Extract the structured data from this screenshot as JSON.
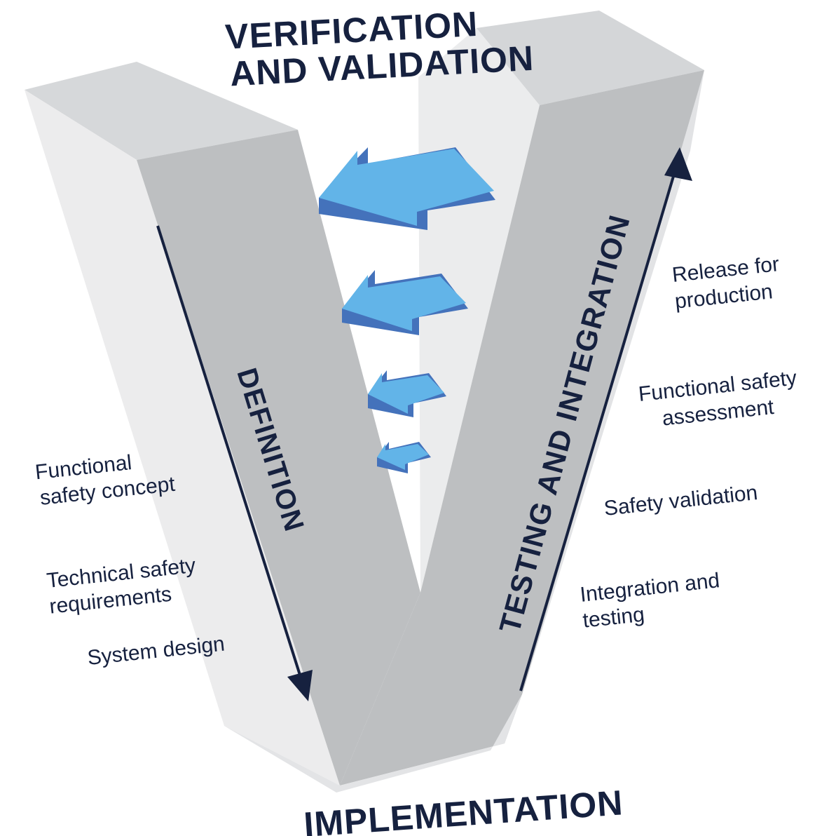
{
  "headings": {
    "top_line1": "VERIFICATION",
    "top_line2": "AND VALIDATION",
    "bottom": "IMPLEMENTATION",
    "left_axis": "DEFINITION",
    "right_axis": "TESTING AND INTEGRATION"
  },
  "left_items": [
    {
      "line1": "Functional",
      "line2": "safety concept"
    },
    {
      "line1": "Technical safety",
      "line2": "requirements"
    },
    {
      "line1": "System design",
      "line2": ""
    }
  ],
  "right_items": [
    {
      "line1": "Release for",
      "line2": "production"
    },
    {
      "line1": "Functional safety",
      "line2": "assessment"
    },
    {
      "line1": "Safety validation",
      "line2": ""
    },
    {
      "line1": "Integration and",
      "line2": "testing"
    }
  ],
  "colors": {
    "navy": "#16213f",
    "block_front": "#bfc1c3",
    "block_side": "#e9eaeb",
    "block_top": "#d3d5d7",
    "arrow_light": "#62b4e8",
    "arrow_dark": "#4472bb"
  }
}
